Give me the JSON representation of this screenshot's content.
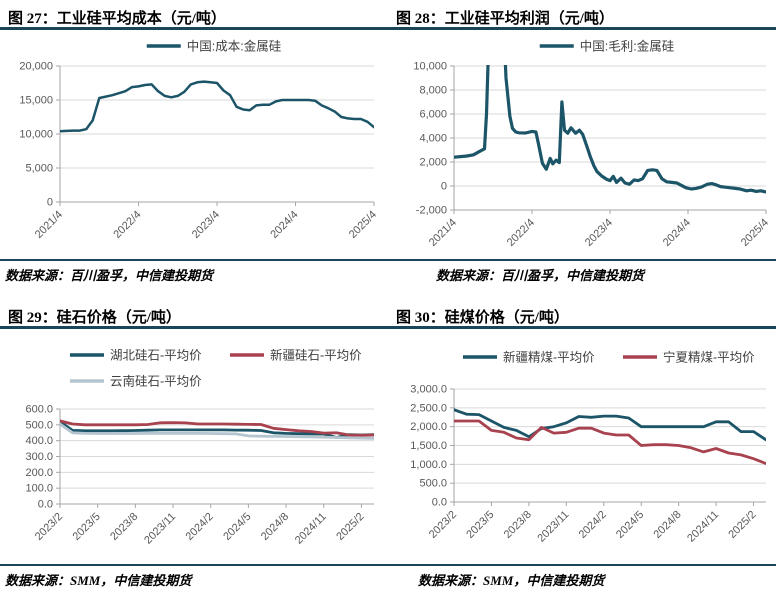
{
  "figures": [
    {
      "caption": "图 27：工业硅平均成本（元/吨）",
      "source": "数据来源：百川盈孚，中信建投期货"
    },
    {
      "caption": "图 28：工业硅平均利润（元/吨）",
      "source": "数据来源：百川盈孚，中信建投期货"
    },
    {
      "caption": "图 29：硅石价格（元/吨）",
      "source": "数据来源：SMM，中信建投期货"
    },
    {
      "caption": "图 30：硅煤价格（元/吨）",
      "source": "数据来源：SMM，中信建投期货"
    }
  ],
  "colors": {
    "dark_teal_line": "#1c5468",
    "red_line": "#a8424f",
    "light_blue_line": "#b4c5cf",
    "divider_navy": "#1a4659",
    "gridline": "#d9d9d9",
    "axis": "#a6a6a6",
    "tick_text": "#595959"
  },
  "chart_data": [
    {
      "type": "line",
      "title": "工业硅平均成本（元/吨）",
      "legend_position": "top-center",
      "grid": true,
      "ylim": [
        0,
        20000
      ],
      "y_ticks": [
        0,
        5000,
        10000,
        15000,
        20000
      ],
      "y_tick_labels": [
        "0",
        "5,000",
        "10,000",
        "15,000",
        "20,000"
      ],
      "n_points": 49,
      "x_labels": [
        "2021/4",
        "2022/4",
        "2023/4",
        "2024/4",
        "2025/4"
      ],
      "x_label_indices": [
        0,
        12,
        24,
        36,
        48
      ],
      "series": [
        {
          "name": "中国:成本:金属硅",
          "color": "#1c5468",
          "values": [
            10400,
            10450,
            10500,
            10500,
            10700,
            12000,
            15300,
            15500,
            15700,
            16000,
            16300,
            16900,
            17000,
            17200,
            17300,
            16300,
            15600,
            15400,
            15600,
            16200,
            17300,
            17600,
            17700,
            17600,
            17500,
            16400,
            15700,
            14000,
            13600,
            13500,
            14200,
            14300,
            14300,
            14800,
            15000,
            15000,
            15000,
            15000,
            15000,
            14900,
            14200,
            13800,
            13300,
            12500,
            12300,
            12200,
            12200,
            11800,
            11000
          ]
        }
      ]
    },
    {
      "type": "line",
      "title": "工业硅平均利润（元/吨）",
      "legend_position": "top-center",
      "grid": true,
      "ylim": [
        -2000,
        10000
      ],
      "y_ticks": [
        -2000,
        0,
        2000,
        4000,
        6000,
        8000,
        10000
      ],
      "y_tick_labels": [
        "-2,000",
        "0",
        "2,000",
        "4,000",
        "6,000",
        "8,000",
        "10,000"
      ],
      "n_points": 49,
      "x_labels": [
        "2021/4",
        "2022/4",
        "2023/4",
        "2024/4",
        "2025/4"
      ],
      "x_label_indices": [
        0,
        12,
        24,
        36,
        48
      ],
      "series": [
        {
          "name": "中国:毛利:金属硅",
          "color": "#1c5468",
          "points": [
            [
              0,
              2400
            ],
            [
              1,
              2450
            ],
            [
              2,
              2500
            ],
            [
              3,
              2600
            ],
            [
              4,
              2900
            ],
            [
              4.7,
              3100
            ],
            [
              5,
              6000
            ],
            [
              5.5,
              15000
            ],
            [
              7.5,
              15000
            ],
            [
              8,
              9000
            ],
            [
              8.6,
              5800
            ],
            [
              9,
              4800
            ],
            [
              9.5,
              4500
            ],
            [
              10,
              4430
            ],
            [
              11,
              4420
            ],
            [
              12,
              4550
            ],
            [
              12.6,
              4500
            ],
            [
              13,
              3500
            ],
            [
              13.6,
              1900
            ],
            [
              14.2,
              1400
            ],
            [
              14.8,
              2300
            ],
            [
              15.2,
              1850
            ],
            [
              15.7,
              2150
            ],
            [
              16.2,
              1950
            ],
            [
              16.6,
              7000
            ],
            [
              17,
              4650
            ],
            [
              17.5,
              4400
            ],
            [
              18,
              4850
            ],
            [
              18.7,
              4400
            ],
            [
              19.3,
              4650
            ],
            [
              19.8,
              4300
            ],
            [
              20.5,
              3200
            ],
            [
              21,
              2400
            ],
            [
              21.5,
              1700
            ],
            [
              22,
              1200
            ],
            [
              22.8,
              800
            ],
            [
              23.5,
              550
            ],
            [
              24,
              450
            ],
            [
              24.5,
              800
            ],
            [
              25,
              300
            ],
            [
              25.7,
              650
            ],
            [
              26.3,
              250
            ],
            [
              27,
              150
            ],
            [
              27.7,
              500
            ],
            [
              28.3,
              450
            ],
            [
              29,
              600
            ],
            [
              29.8,
              1300
            ],
            [
              30.5,
              1350
            ],
            [
              31.2,
              1300
            ],
            [
              32,
              600
            ],
            [
              32.7,
              350
            ],
            [
              33.5,
              300
            ],
            [
              34.3,
              250
            ],
            [
              35,
              50
            ],
            [
              35.7,
              -150
            ],
            [
              36.5,
              -250
            ],
            [
              37.2,
              -200
            ],
            [
              38,
              -100
            ],
            [
              39,
              150
            ],
            [
              39.7,
              200
            ],
            [
              40.3,
              100
            ],
            [
              41,
              -50
            ],
            [
              41.8,
              -100
            ],
            [
              42.5,
              -150
            ],
            [
              43.3,
              -200
            ],
            [
              44,
              -250
            ],
            [
              45,
              -400
            ],
            [
              45.7,
              -350
            ],
            [
              46.5,
              -450
            ],
            [
              47.2,
              -400
            ],
            [
              48,
              -500
            ]
          ]
        }
      ]
    },
    {
      "type": "line",
      "title": "硅石价格（元/吨）",
      "legend_position": "top-center",
      "legend_rows": [
        [
          0,
          1
        ],
        [
          2
        ]
      ],
      "grid": true,
      "ylim": [
        0,
        600
      ],
      "y_ticks": [
        0,
        100,
        200,
        300,
        400,
        500,
        600
      ],
      "y_tick_labels": [
        "0.0",
        "100.0",
        "200.0",
        "300.0",
        "400.0",
        "500.0",
        "600.0"
      ],
      "n_points": 26,
      "x_labels": [
        "2023/2",
        "2023/5",
        "2023/8",
        "2023/11",
        "2024/2",
        "2024/5",
        "2024/8",
        "2024/11",
        "2025/2"
      ],
      "x_label_indices": [
        0,
        3,
        6,
        9,
        12,
        15,
        18,
        21,
        24
      ],
      "series": [
        {
          "name": "湖北硅石-平均价",
          "color": "#1c5468",
          "values": [
            520,
            465,
            462,
            462,
            462,
            463,
            464,
            466,
            468,
            468,
            468,
            468,
            468,
            468,
            467,
            466,
            464,
            450,
            446,
            444,
            443,
            442,
            420,
            438,
            436,
            438
          ]
        },
        {
          "name": "新疆硅石-平均价",
          "color": "#a8424f",
          "values": [
            525,
            505,
            500,
            500,
            500,
            500,
            500,
            502,
            513,
            514,
            512,
            505,
            505,
            505,
            504,
            503,
            502,
            478,
            470,
            462,
            458,
            448,
            450,
            436,
            434,
            436
          ]
        },
        {
          "name": "云南硅石-平均价",
          "color": "#b4c5cf",
          "values": [
            505,
            450,
            446,
            445,
            445,
            445,
            445,
            446,
            446,
            446,
            446,
            446,
            445,
            444,
            443,
            430,
            428,
            427,
            426,
            425,
            424,
            422,
            420,
            418,
            416,
            415
          ]
        }
      ]
    },
    {
      "type": "line",
      "title": "硅煤价格（元/吨）",
      "legend_position": "top-center",
      "grid": true,
      "ylim": [
        0,
        3000
      ],
      "y_ticks": [
        0,
        500,
        1000,
        1500,
        2000,
        2500,
        3000
      ],
      "y_tick_labels": [
        "0.0",
        "500.0",
        "1,000.0",
        "1,500.0",
        "2,000.0",
        "2,500.0",
        "3,000.0"
      ],
      "n_points": 26,
      "x_labels": [
        "2023/2",
        "2023/5",
        "2023/8",
        "2023/11",
        "2024/2",
        "2024/5",
        "2024/8",
        "2024/11",
        "2025/2"
      ],
      "x_label_indices": [
        0,
        3,
        6,
        9,
        12,
        15,
        18,
        21,
        24
      ],
      "series": [
        {
          "name": "新疆精煤-平均价",
          "color": "#1c5468",
          "values": [
            2450,
            2330,
            2320,
            2150,
            1980,
            1900,
            1730,
            1950,
            2000,
            2100,
            2270,
            2250,
            2280,
            2280,
            2230,
            2000,
            2000,
            2000,
            2000,
            2000,
            2000,
            2130,
            2130,
            1870,
            1870,
            1650
          ]
        },
        {
          "name": "宁夏精煤-平均价",
          "color": "#a8424f",
          "values": [
            2150,
            2150,
            2150,
            1900,
            1850,
            1700,
            1650,
            1980,
            1830,
            1850,
            1960,
            1960,
            1830,
            1780,
            1780,
            1500,
            1520,
            1520,
            1500,
            1440,
            1330,
            1420,
            1300,
            1250,
            1150,
            1020
          ]
        }
      ]
    }
  ]
}
